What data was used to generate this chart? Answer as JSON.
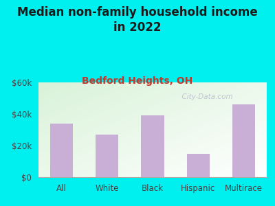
{
  "title": "Median non-family household income\nin 2022",
  "subtitle": "Bedford Heights, OH",
  "categories": [
    "All",
    "White",
    "Black",
    "Hispanic",
    "Multirace"
  ],
  "values": [
    34000,
    27000,
    39000,
    15000,
    46000
  ],
  "bar_color": "#c9aed6",
  "title_fontsize": 12,
  "subtitle_fontsize": 10,
  "subtitle_color": "#c0392b",
  "title_color": "#1a1a1a",
  "tick_color": "#444444",
  "ylim": [
    0,
    60000
  ],
  "yticks": [
    0,
    20000,
    40000,
    60000
  ],
  "ytick_labels": [
    "$0",
    "$20k",
    "$40k",
    "$60k"
  ],
  "background_outer": "#00f0f0",
  "watermark": "  City-Data.com",
  "watermark_color": "#bbbbcc"
}
